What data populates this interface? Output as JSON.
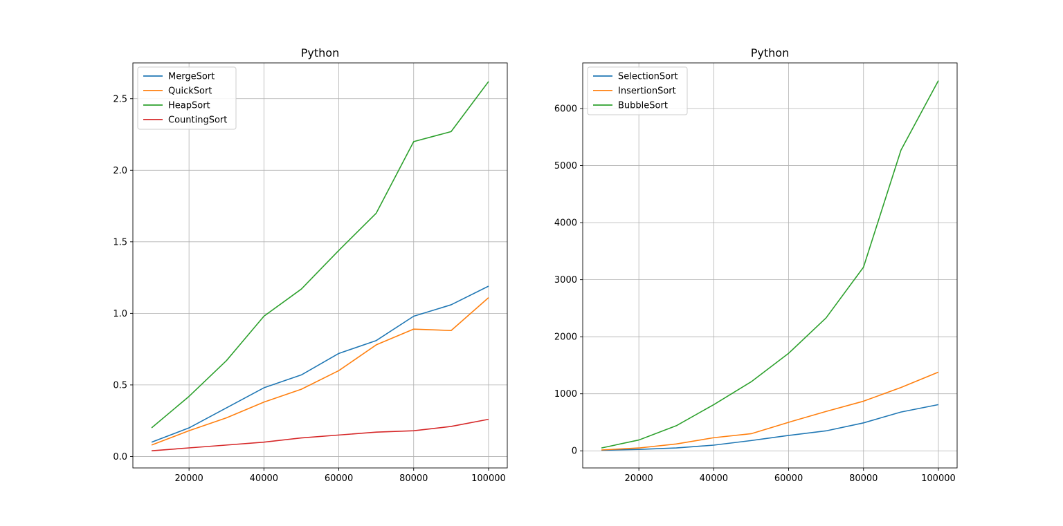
{
  "colors": {
    "blue": "#1f77b4",
    "orange": "#ff7f0e",
    "green": "#2ca02c",
    "red": "#d62728",
    "grid": "#b0b0b0",
    "axis": "#000000"
  },
  "chart_data": [
    {
      "type": "line",
      "title": "Python",
      "xlabel": "",
      "ylabel": "",
      "x": [
        10000,
        20000,
        30000,
        40000,
        50000,
        60000,
        70000,
        80000,
        90000,
        100000
      ],
      "xlim": [
        5000,
        105000
      ],
      "ylim": [
        -0.08,
        2.75
      ],
      "xticks": [
        20000,
        40000,
        60000,
        80000,
        100000
      ],
      "yticks": [
        0.0,
        0.5,
        1.0,
        1.5,
        2.0,
        2.5
      ],
      "ytick_labels": [
        "0.0",
        "0.5",
        "1.0",
        "1.5",
        "2.0",
        "2.5"
      ],
      "grid": true,
      "legend": "upper-left",
      "series": [
        {
          "name": "MergeSort",
          "color": "#1f77b4",
          "values": [
            0.1,
            0.2,
            0.34,
            0.48,
            0.57,
            0.72,
            0.81,
            0.98,
            1.06,
            1.19
          ]
        },
        {
          "name": "QuickSort",
          "color": "#ff7f0e",
          "values": [
            0.08,
            0.18,
            0.27,
            0.38,
            0.47,
            0.6,
            0.78,
            0.89,
            0.88,
            1.11
          ]
        },
        {
          "name": "HeapSort",
          "color": "#2ca02c",
          "values": [
            0.2,
            0.42,
            0.67,
            0.98,
            1.17,
            1.44,
            1.7,
            2.2,
            2.27,
            2.62
          ]
        },
        {
          "name": "CountingSort",
          "color": "#d62728",
          "values": [
            0.04,
            0.06,
            0.08,
            0.1,
            0.13,
            0.15,
            0.17,
            0.18,
            0.21,
            0.26
          ]
        }
      ]
    },
    {
      "type": "line",
      "title": "Python",
      "xlabel": "",
      "ylabel": "",
      "x": [
        10000,
        20000,
        30000,
        40000,
        50000,
        60000,
        70000,
        80000,
        90000,
        100000
      ],
      "xlim": [
        5000,
        105000
      ],
      "ylim": [
        -300,
        6800
      ],
      "xticks": [
        20000,
        40000,
        60000,
        80000,
        100000
      ],
      "yticks": [
        0,
        1000,
        2000,
        3000,
        4000,
        5000,
        6000
      ],
      "ytick_labels": [
        "0",
        "1000",
        "2000",
        "3000",
        "4000",
        "5000",
        "6000"
      ],
      "grid": true,
      "legend": "upper-left",
      "series": [
        {
          "name": "SelectionSort",
          "color": "#1f77b4",
          "values": [
            10,
            25,
            50,
            100,
            180,
            270,
            350,
            490,
            680,
            810
          ]
        },
        {
          "name": "InsertionSort",
          "color": "#ff7f0e",
          "values": [
            15,
            50,
            120,
            230,
            300,
            500,
            690,
            870,
            1110,
            1380
          ]
        },
        {
          "name": "BubbleSort",
          "color": "#2ca02c",
          "values": [
            50,
            190,
            440,
            810,
            1210,
            1710,
            2330,
            3220,
            5270,
            6490
          ]
        }
      ]
    }
  ]
}
